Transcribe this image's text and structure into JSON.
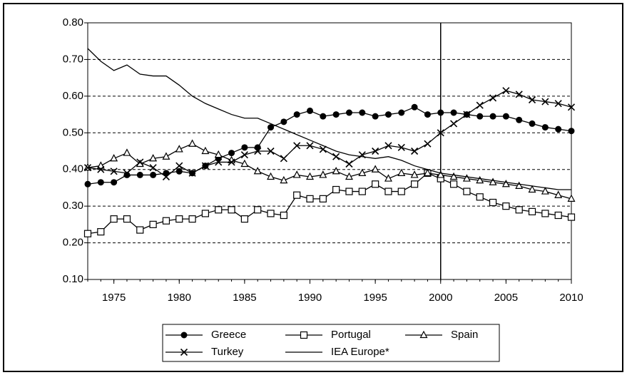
{
  "chart_data": {
    "type": "line",
    "x": [
      1973,
      1974,
      1975,
      1976,
      1977,
      1978,
      1979,
      1980,
      1981,
      1982,
      1983,
      1984,
      1985,
      1986,
      1987,
      1988,
      1989,
      1990,
      1991,
      1992,
      1993,
      1994,
      1995,
      1996,
      1997,
      1998,
      1999,
      2000,
      2001,
      2002,
      2003,
      2004,
      2005,
      2006,
      2007,
      2008,
      2009,
      2010
    ],
    "series": [
      {
        "name": "Greece",
        "color": "#000000",
        "marker": "circle",
        "values": [
          0.36,
          0.365,
          0.365,
          0.385,
          0.385,
          0.385,
          0.39,
          0.395,
          0.39,
          0.41,
          0.43,
          0.445,
          0.46,
          0.46,
          0.515,
          0.53,
          0.55,
          0.56,
          0.545,
          0.55,
          0.555,
          0.555,
          0.545,
          0.55,
          0.555,
          0.57,
          0.55,
          0.555,
          0.555,
          0.55,
          0.545,
          0.545,
          0.545,
          0.535,
          0.525,
          0.515,
          0.51,
          0.505
        ]
      },
      {
        "name": "Portugal",
        "color": "#000000",
        "marker": "square",
        "values": [
          0.225,
          0.23,
          0.265,
          0.265,
          0.235,
          0.25,
          0.26,
          0.265,
          0.265,
          0.28,
          0.29,
          0.29,
          0.265,
          0.29,
          0.28,
          0.275,
          0.33,
          0.32,
          0.32,
          0.345,
          0.34,
          0.34,
          0.36,
          0.34,
          0.34,
          0.36,
          0.39,
          0.375,
          0.36,
          0.34,
          0.325,
          0.31,
          0.3,
          0.29,
          0.285,
          0.28,
          0.275,
          0.27
        ]
      },
      {
        "name": "Spain",
        "color": "#000000",
        "marker": "triangle",
        "values": [
          0.405,
          0.41,
          0.43,
          0.445,
          0.415,
          0.43,
          0.435,
          0.455,
          0.47,
          0.45,
          0.44,
          0.425,
          0.415,
          0.395,
          0.38,
          0.37,
          0.385,
          0.38,
          0.385,
          0.395,
          0.38,
          0.39,
          0.4,
          0.375,
          0.39,
          0.385,
          0.39,
          0.385,
          0.38,
          0.375,
          0.37,
          0.365,
          0.36,
          0.355,
          0.345,
          0.34,
          0.33,
          0.32
        ]
      },
      {
        "name": "Turkey",
        "color": "#000000",
        "marker": "cross",
        "values": [
          0.405,
          0.4,
          0.395,
          0.39,
          0.42,
          0.405,
          0.38,
          0.41,
          0.39,
          0.41,
          0.42,
          0.42,
          0.44,
          0.45,
          0.45,
          0.43,
          0.465,
          0.465,
          0.455,
          0.435,
          0.415,
          0.44,
          0.45,
          0.465,
          0.46,
          0.45,
          0.47,
          0.5,
          0.525,
          0.55,
          0.575,
          0.595,
          0.615,
          0.605,
          0.59,
          0.585,
          0.58,
          0.57
        ]
      },
      {
        "name": "IEA Europe*",
        "color": "#000000",
        "marker": "none",
        "values": [
          0.73,
          0.695,
          0.67,
          0.685,
          0.66,
          0.655,
          0.655,
          0.63,
          0.6,
          0.58,
          0.565,
          0.55,
          0.54,
          0.54,
          0.525,
          0.51,
          0.495,
          0.48,
          0.465,
          0.45,
          0.44,
          0.435,
          0.43,
          0.435,
          0.425,
          0.41,
          0.4,
          0.39,
          0.385,
          0.38,
          0.375,
          0.37,
          0.365,
          0.36,
          0.355,
          0.35,
          0.345,
          0.345
        ]
      }
    ],
    "xlim": [
      1973,
      2010
    ],
    "xticks": [
      1975,
      1980,
      1985,
      1990,
      1995,
      2000,
      2005,
      2010
    ],
    "ylim": [
      0.1,
      0.8
    ],
    "yticks": [
      {
        "value": 0.1,
        "label": "0.10"
      },
      {
        "value": 0.2,
        "label": "0.20"
      },
      {
        "value": 0.3,
        "label": "0.30"
      },
      {
        "value": 0.4,
        "label": "0.40"
      },
      {
        "value": 0.5,
        "label": "0.50"
      },
      {
        "value": 0.6,
        "label": "0.60"
      },
      {
        "value": 0.7,
        "label": "0.70"
      },
      {
        "value": 0.8,
        "label": "0.80"
      }
    ],
    "grid": true,
    "vline": 2000,
    "legend": "bottom"
  }
}
